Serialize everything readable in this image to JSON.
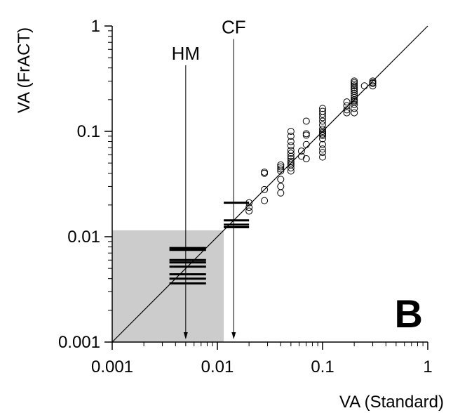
{
  "chart_data": {
    "type": "scatter",
    "xscale": "log",
    "yscale": "log",
    "xlim": [
      0.001,
      1
    ],
    "ylim": [
      0.001,
      1
    ],
    "xlabel": "VA (Standard)",
    "ylabel": "VA (FrACT)",
    "xticks": [
      {
        "value": 0.001,
        "label": "0.001"
      },
      {
        "value": 0.01,
        "label": "0.01"
      },
      {
        "value": 0.1,
        "label": "0.1"
      },
      {
        "value": 1,
        "label": "1"
      }
    ],
    "yticks": [
      {
        "value": 0.001,
        "label": "0.001"
      },
      {
        "value": 0.01,
        "label": "0.01"
      },
      {
        "value": 0.1,
        "label": "0.1"
      },
      {
        "value": 1,
        "label": "1"
      }
    ],
    "panel_label": "B",
    "identity_line": true,
    "shaded_region": {
      "x": [
        0.001,
        0.0115
      ],
      "y": [
        0.001,
        0.0115
      ],
      "color": "#cccccc"
    },
    "annotations": [
      {
        "text": "HM",
        "x": 0.005,
        "label_y": 0.48
      },
      {
        "text": "CF",
        "x": 0.0143,
        "label_y": 0.85
      }
    ],
    "hm_bars": {
      "x_range": [
        0.0035,
        0.0078
      ],
      "y": [
        0.0078,
        0.0075,
        0.006,
        0.0057,
        0.0052,
        0.0044,
        0.004,
        0.0036
      ]
    },
    "cf_bars": {
      "x_range": [
        0.0115,
        0.02
      ],
      "y": [
        0.021,
        0.0143,
        0.013,
        0.0123
      ]
    },
    "points": [
      [
        0.02,
        0.021
      ],
      [
        0.02,
        0.019
      ],
      [
        0.02,
        0.0175
      ],
      [
        0.028,
        0.041
      ],
      [
        0.028,
        0.04
      ],
      [
        0.028,
        0.028
      ],
      [
        0.028,
        0.022
      ],
      [
        0.04,
        0.048
      ],
      [
        0.04,
        0.046
      ],
      [
        0.04,
        0.044
      ],
      [
        0.04,
        0.042
      ],
      [
        0.04,
        0.035
      ],
      [
        0.04,
        0.03
      ],
      [
        0.04,
        0.026
      ],
      [
        0.05,
        0.1
      ],
      [
        0.05,
        0.09
      ],
      [
        0.05,
        0.08
      ],
      [
        0.05,
        0.073
      ],
      [
        0.05,
        0.066
      ],
      [
        0.05,
        0.062
      ],
      [
        0.05,
        0.058
      ],
      [
        0.05,
        0.055
      ],
      [
        0.05,
        0.052
      ],
      [
        0.05,
        0.05
      ],
      [
        0.05,
        0.048
      ],
      [
        0.05,
        0.045
      ],
      [
        0.05,
        0.042
      ],
      [
        0.063,
        0.065
      ],
      [
        0.063,
        0.058
      ],
      [
        0.07,
        0.125
      ],
      [
        0.07,
        0.095
      ],
      [
        0.07,
        0.092
      ],
      [
        0.07,
        0.075
      ],
      [
        0.07,
        0.055
      ],
      [
        0.1,
        0.165
      ],
      [
        0.1,
        0.155
      ],
      [
        0.1,
        0.145
      ],
      [
        0.1,
        0.135
      ],
      [
        0.1,
        0.125
      ],
      [
        0.1,
        0.115
      ],
      [
        0.1,
        0.105
      ],
      [
        0.1,
        0.1
      ],
      [
        0.1,
        0.097
      ],
      [
        0.1,
        0.094
      ],
      [
        0.1,
        0.091
      ],
      [
        0.1,
        0.085
      ],
      [
        0.1,
        0.075
      ],
      [
        0.1,
        0.068
      ],
      [
        0.1,
        0.063
      ],
      [
        0.1,
        0.057
      ],
      [
        0.17,
        0.19
      ],
      [
        0.17,
        0.175
      ],
      [
        0.17,
        0.16
      ],
      [
        0.17,
        0.15
      ],
      [
        0.2,
        0.3
      ],
      [
        0.2,
        0.29
      ],
      [
        0.2,
        0.28
      ],
      [
        0.2,
        0.27
      ],
      [
        0.2,
        0.26
      ],
      [
        0.2,
        0.25
      ],
      [
        0.2,
        0.24
      ],
      [
        0.2,
        0.23
      ],
      [
        0.2,
        0.22
      ],
      [
        0.2,
        0.21
      ],
      [
        0.2,
        0.2
      ],
      [
        0.2,
        0.195
      ],
      [
        0.2,
        0.19
      ],
      [
        0.2,
        0.18
      ],
      [
        0.2,
        0.165
      ],
      [
        0.2,
        0.15
      ],
      [
        0.25,
        0.27
      ],
      [
        0.3,
        0.3
      ],
      [
        0.3,
        0.29
      ],
      [
        0.3,
        0.285
      ],
      [
        0.3,
        0.27
      ]
    ]
  }
}
